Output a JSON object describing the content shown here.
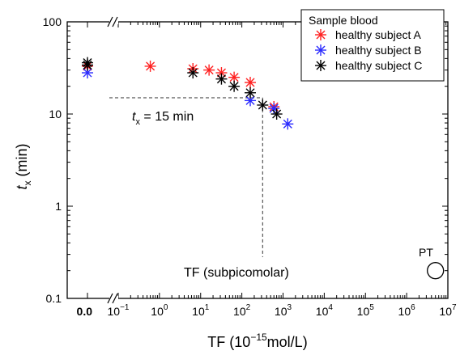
{
  "chart_data": {
    "type": "scatter",
    "title": "",
    "xlabel": {
      "prefix": "TF  (10",
      "exp": "−15",
      "suffix": "mol/L)"
    },
    "ylabel": {
      "main": "t",
      "sub": "x",
      "suffix": " (min)"
    },
    "x_scale": "log",
    "y_scale": "log",
    "xlim": [
      0.1,
      10000000
    ],
    "ylim": [
      0.1,
      100
    ],
    "x_zero_label": "0.0",
    "x_ticks": [
      {
        "value": 0.1,
        "base": "10",
        "exp": "−1"
      },
      {
        "value": 1,
        "base": "10",
        "exp": "0"
      },
      {
        "value": 10,
        "base": "10",
        "exp": "1"
      },
      {
        "value": 100,
        "base": "10",
        "exp": "2"
      },
      {
        "value": 1000,
        "base": "10",
        "exp": "3"
      },
      {
        "value": 10000,
        "base": "10",
        "exp": "4"
      },
      {
        "value": 100000,
        "base": "10",
        "exp": "5"
      },
      {
        "value": 1000000,
        "base": "10",
        "exp": "6"
      },
      {
        "value": 10000000,
        "base": "10",
        "exp": "7"
      }
    ],
    "y_ticks": [
      {
        "value": 0.1,
        "label": "0.1"
      },
      {
        "value": 1,
        "label": "1"
      },
      {
        "value": 10,
        "label": "10"
      },
      {
        "value": 100,
        "label": "100"
      }
    ],
    "legend": {
      "title": "Sample blood",
      "position": "top-right"
    },
    "series": [
      {
        "name": "healthy subject A",
        "color": "#ff2020",
        "zero_points": [
          33
        ],
        "points": [
          [
            0.6,
            33
          ],
          [
            6.5,
            31
          ],
          [
            16,
            30
          ],
          [
            32,
            28
          ],
          [
            65,
            25
          ],
          [
            160,
            22
          ],
          [
            600,
            12
          ]
        ]
      },
      {
        "name": "healthy subject B",
        "color": "#2a2aff",
        "zero_points": [
          28
        ],
        "points": [
          [
            160,
            14
          ],
          [
            600,
            11.5
          ],
          [
            1300,
            7.8
          ]
        ]
      },
      {
        "name": "healthy subject C",
        "color": "#000000",
        "zero_points": [
          36,
          34
        ],
        "points": [
          [
            6.5,
            28
          ],
          [
            32,
            24
          ],
          [
            65,
            20
          ],
          [
            160,
            17
          ],
          [
            320,
            12.5
          ],
          [
            700,
            10
          ]
        ]
      }
    ],
    "annotations": {
      "tx_line": {
        "text_main": "t",
        "text_sub": "x",
        "text_suffix": " = 15 min",
        "y": 15,
        "x_end": 320
      },
      "tf_line": {
        "text": "TF (subpicomolar)",
        "x": 320
      },
      "pt": {
        "text": "PT",
        "x": 5000000,
        "y": 0.2
      }
    }
  }
}
